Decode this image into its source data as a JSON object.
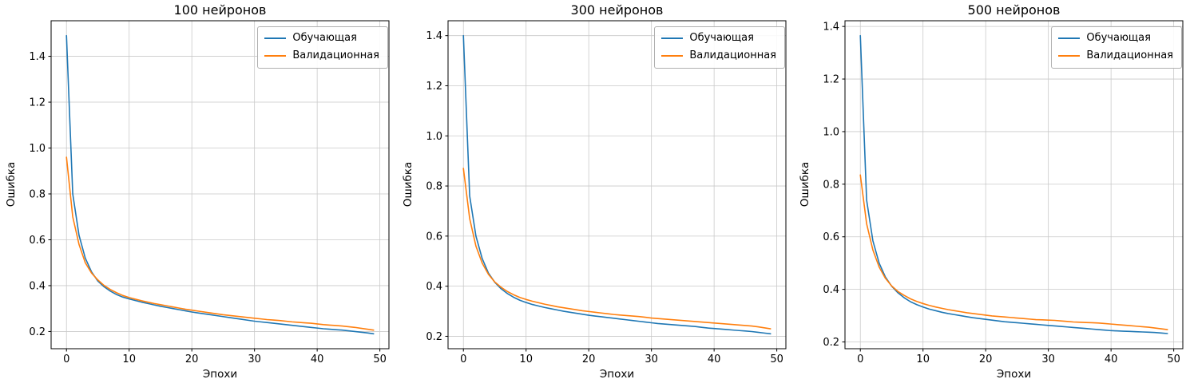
{
  "figure": {
    "background": "#ffffff"
  },
  "colors": {
    "train": "#1f77b4",
    "val": "#ff7f0e",
    "grid": "#c9c9c9",
    "spine": "#000000"
  },
  "chart_data": [
    {
      "type": "line",
      "title": "100 нейронов",
      "xlabel": "Эпохи",
      "ylabel": "Ошибка",
      "xlim": [
        -2.45,
        51.45
      ],
      "ylim": [
        0.125,
        1.555
      ],
      "xticks": [
        0,
        10,
        20,
        30,
        40,
        50
      ],
      "yticks": [
        0.2,
        0.4,
        0.6,
        0.8,
        1.0,
        1.2,
        1.4
      ],
      "grid": true,
      "legend_position": "upper right",
      "series": [
        {
          "key": "train",
          "name": "Обучающая",
          "color": "#1f77b4",
          "x_start": 0,
          "x_step": 1,
          "values": [
            1.49,
            0.8,
            0.62,
            0.52,
            0.46,
            0.42,
            0.395,
            0.376,
            0.361,
            0.35,
            0.342,
            0.335,
            0.328,
            0.322,
            0.316,
            0.31,
            0.305,
            0.3,
            0.295,
            0.29,
            0.285,
            0.281,
            0.277,
            0.273,
            0.269,
            0.265,
            0.261,
            0.257,
            0.253,
            0.249,
            0.245,
            0.242,
            0.239,
            0.236,
            0.233,
            0.23,
            0.227,
            0.224,
            0.221,
            0.218,
            0.215,
            0.212,
            0.21,
            0.208,
            0.206,
            0.203,
            0.2,
            0.197,
            0.194,
            0.19
          ]
        },
        {
          "key": "val",
          "name": "Валидационная",
          "color": "#ff7f0e",
          "x_start": 0,
          "x_step": 1,
          "values": [
            0.96,
            0.7,
            0.58,
            0.5,
            0.455,
            0.425,
            0.401,
            0.383,
            0.369,
            0.357,
            0.348,
            0.341,
            0.334,
            0.328,
            0.322,
            0.317,
            0.312,
            0.307,
            0.302,
            0.297,
            0.293,
            0.289,
            0.285,
            0.281,
            0.277,
            0.273,
            0.27,
            0.267,
            0.264,
            0.261,
            0.258,
            0.255,
            0.252,
            0.25,
            0.248,
            0.245,
            0.242,
            0.24,
            0.238,
            0.236,
            0.233,
            0.23,
            0.228,
            0.226,
            0.224,
            0.221,
            0.218,
            0.214,
            0.21,
            0.206
          ]
        }
      ]
    },
    {
      "type": "line",
      "title": "300 нейронов",
      "xlabel": "Эпохи",
      "ylabel": "Ошибка",
      "xlim": [
        -2.45,
        51.45
      ],
      "ylim": [
        0.1505,
        1.4595
      ],
      "xticks": [
        0,
        10,
        20,
        30,
        40,
        50
      ],
      "yticks": [
        0.2,
        0.4,
        0.6,
        0.8,
        1.0,
        1.2,
        1.4
      ],
      "grid": true,
      "legend_position": "upper right",
      "series": [
        {
          "key": "train",
          "name": "Обучающая",
          "color": "#1f77b4",
          "x_start": 0,
          "x_step": 1,
          "values": [
            1.4,
            0.76,
            0.6,
            0.51,
            0.452,
            0.416,
            0.39,
            0.371,
            0.356,
            0.344,
            0.335,
            0.327,
            0.321,
            0.315,
            0.31,
            0.305,
            0.3,
            0.296,
            0.292,
            0.288,
            0.284,
            0.281,
            0.278,
            0.275,
            0.272,
            0.269,
            0.266,
            0.263,
            0.26,
            0.257,
            0.254,
            0.251,
            0.249,
            0.247,
            0.245,
            0.243,
            0.241,
            0.239,
            0.236,
            0.233,
            0.231,
            0.229,
            0.227,
            0.225,
            0.223,
            0.221,
            0.219,
            0.216,
            0.213,
            0.21
          ]
        },
        {
          "key": "val",
          "name": "Валидационная",
          "color": "#ff7f0e",
          "x_start": 0,
          "x_step": 1,
          "values": [
            0.87,
            0.67,
            0.56,
            0.492,
            0.447,
            0.417,
            0.396,
            0.379,
            0.366,
            0.355,
            0.347,
            0.34,
            0.334,
            0.328,
            0.323,
            0.318,
            0.314,
            0.31,
            0.306,
            0.302,
            0.299,
            0.296,
            0.293,
            0.29,
            0.287,
            0.285,
            0.283,
            0.281,
            0.279,
            0.276,
            0.273,
            0.271,
            0.269,
            0.267,
            0.265,
            0.263,
            0.261,
            0.259,
            0.257,
            0.255,
            0.253,
            0.251,
            0.249,
            0.247,
            0.245,
            0.243,
            0.241,
            0.238,
            0.234,
            0.23
          ]
        }
      ]
    },
    {
      "type": "line",
      "title": "500 нейронов",
      "xlabel": "Эпохи",
      "ylabel": "Ошибка",
      "xlim": [
        -2.45,
        51.45
      ],
      "ylim": [
        0.1743,
        1.4217
      ],
      "xticks": [
        0,
        10,
        20,
        30,
        40,
        50
      ],
      "yticks": [
        0.2,
        0.4,
        0.6,
        0.8,
        1.0,
        1.2,
        1.4
      ],
      "grid": true,
      "legend_position": "upper right",
      "series": [
        {
          "key": "train",
          "name": "Обучающая",
          "color": "#1f77b4",
          "x_start": 0,
          "x_step": 1,
          "values": [
            1.365,
            0.74,
            0.585,
            0.5,
            0.447,
            0.412,
            0.387,
            0.368,
            0.353,
            0.342,
            0.333,
            0.325,
            0.319,
            0.313,
            0.308,
            0.304,
            0.3,
            0.296,
            0.292,
            0.289,
            0.286,
            0.283,
            0.28,
            0.277,
            0.275,
            0.273,
            0.271,
            0.269,
            0.267,
            0.265,
            0.263,
            0.261,
            0.259,
            0.257,
            0.255,
            0.253,
            0.251,
            0.249,
            0.247,
            0.245,
            0.243,
            0.242,
            0.241,
            0.24,
            0.239,
            0.238,
            0.237,
            0.236,
            0.234,
            0.232
          ]
        },
        {
          "key": "val",
          "name": "Валидационная",
          "color": "#ff7f0e",
          "x_start": 0,
          "x_step": 1,
          "values": [
            0.835,
            0.65,
            0.55,
            0.485,
            0.442,
            0.413,
            0.392,
            0.377,
            0.364,
            0.354,
            0.346,
            0.339,
            0.333,
            0.328,
            0.323,
            0.319,
            0.315,
            0.311,
            0.308,
            0.305,
            0.302,
            0.299,
            0.297,
            0.295,
            0.293,
            0.291,
            0.289,
            0.287,
            0.285,
            0.284,
            0.283,
            0.282,
            0.28,
            0.278,
            0.276,
            0.275,
            0.274,
            0.273,
            0.272,
            0.27,
            0.268,
            0.266,
            0.264,
            0.262,
            0.26,
            0.258,
            0.256,
            0.253,
            0.25,
            0.247
          ]
        }
      ]
    }
  ]
}
